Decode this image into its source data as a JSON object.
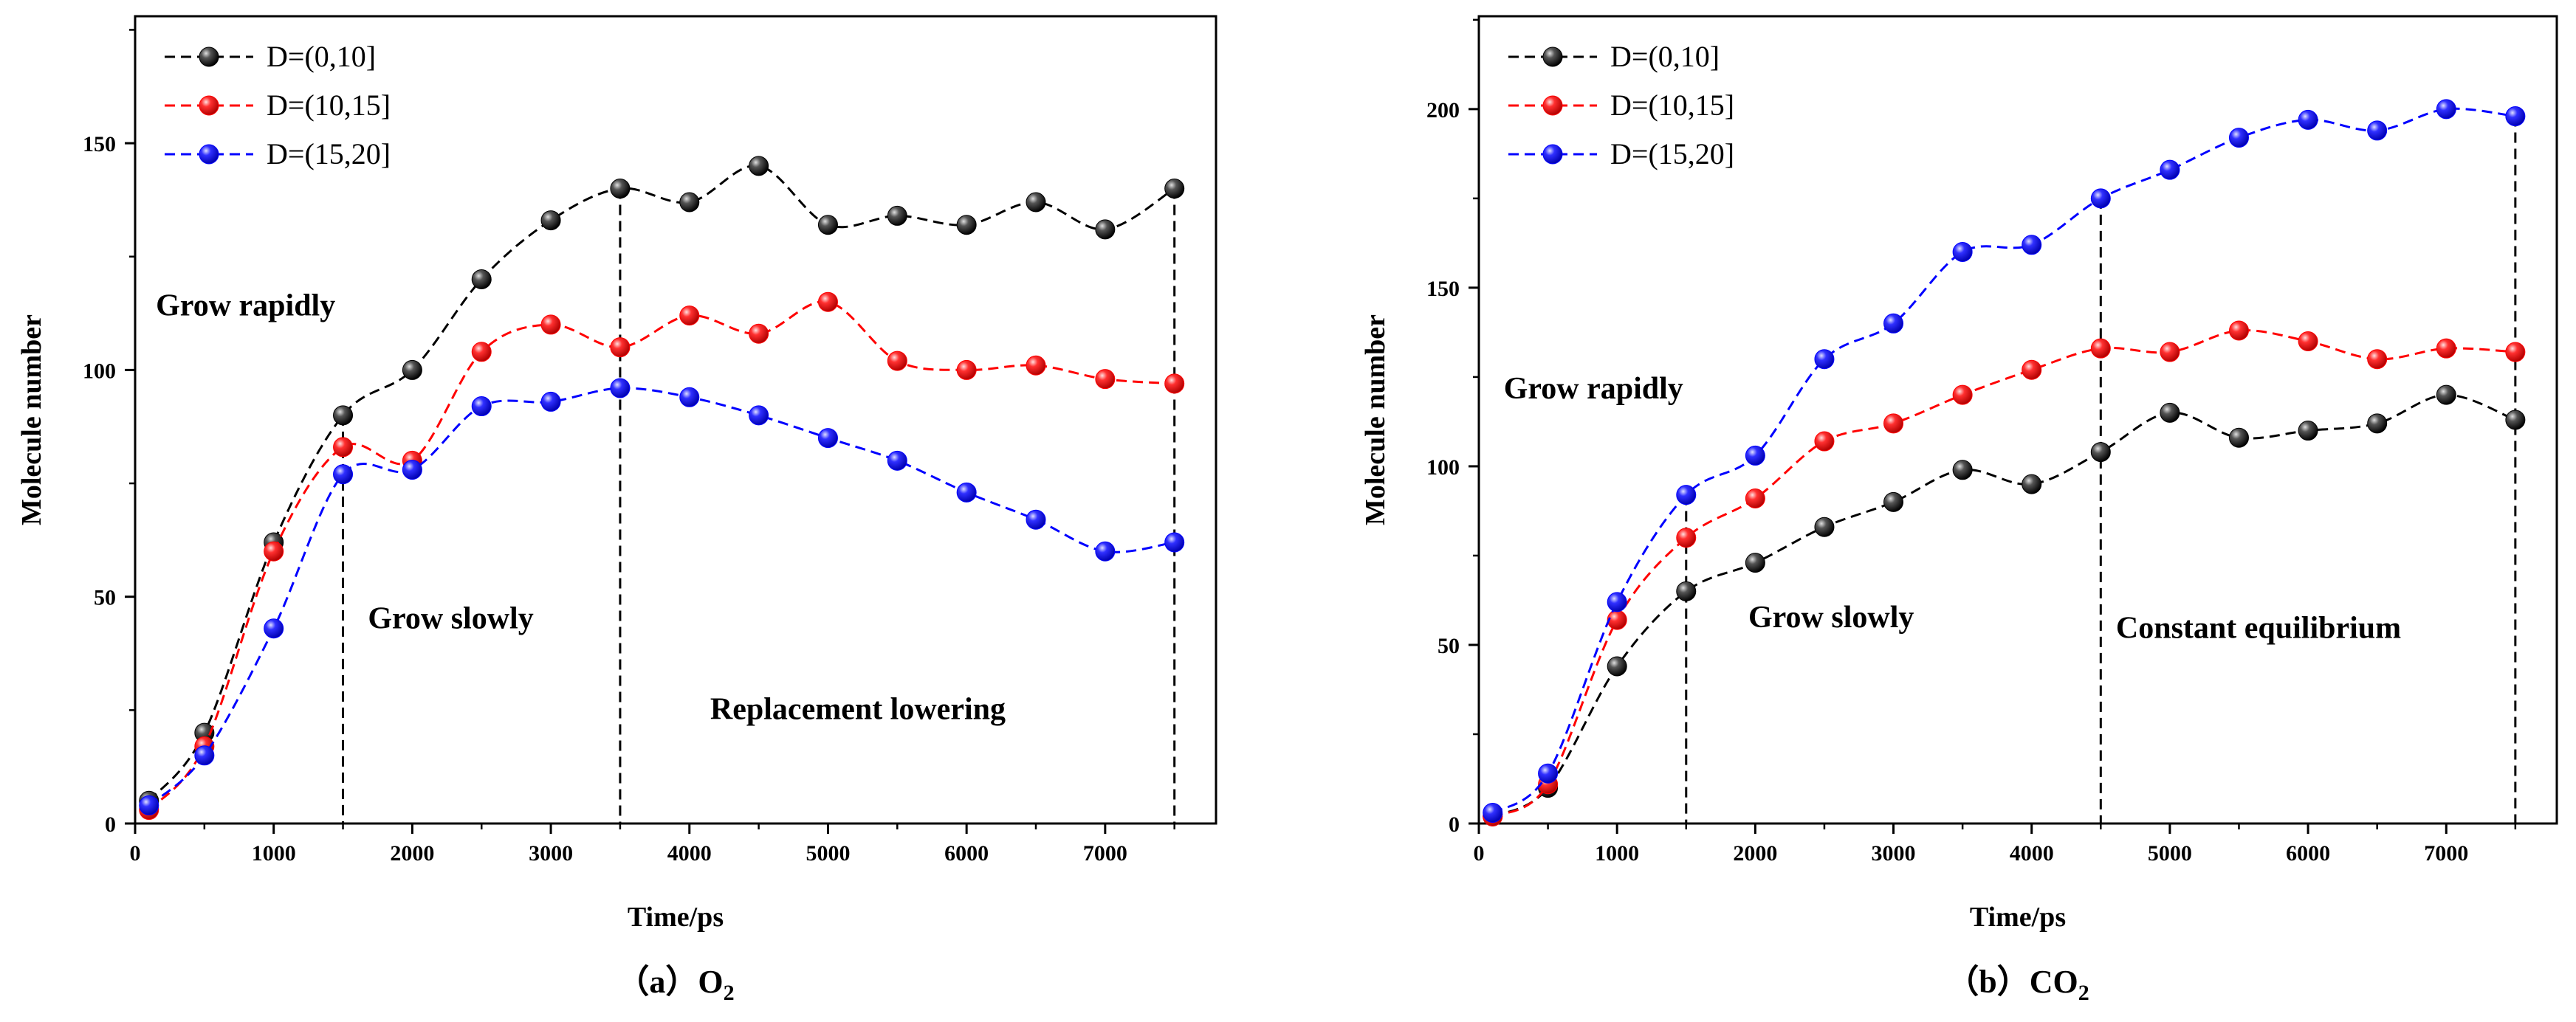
{
  "chart_data": [
    {
      "type": "line",
      "id": "o2",
      "caption": {
        "prefix": "（a）",
        "main": "O",
        "sub": "2"
      },
      "xlabel": "Time/ps",
      "ylabel": "Molecule number",
      "xlim": [
        0,
        7800
      ],
      "ylim": [
        0,
        178
      ],
      "xticks": [
        0,
        1000,
        2000,
        3000,
        4000,
        5000,
        6000,
        7000
      ],
      "yticks": [
        0,
        50,
        100,
        150
      ],
      "x": [
        100,
        500,
        1000,
        1500,
        2000,
        2500,
        3000,
        3500,
        4000,
        4500,
        5000,
        5500,
        6000,
        6500,
        7000,
        7500
      ],
      "series": [
        {
          "name": "D=(0,10]",
          "color": "#000000",
          "values": [
            5,
            20,
            62,
            90,
            100,
            120,
            133,
            140,
            137,
            145,
            132,
            134,
            132,
            137,
            131,
            140
          ]
        },
        {
          "name": "D=(10,15]",
          "color": "#ff0000",
          "values": [
            3,
            17,
            60,
            83,
            80,
            104,
            110,
            105,
            112,
            108,
            115,
            102,
            100,
            101,
            98,
            97
          ]
        },
        {
          "name": "D=(15,20]",
          "color": "#0000ff",
          "values": [
            4,
            15,
            43,
            77,
            78,
            92,
            93,
            96,
            94,
            90,
            85,
            80,
            73,
            67,
            60,
            62
          ]
        }
      ],
      "dividers": [
        {
          "x": 1500,
          "y": 90
        },
        {
          "x": 3500,
          "y": 140
        },
        {
          "x": 7500,
          "y": 140
        }
      ],
      "annotations": [
        {
          "text": "Grow rapidly",
          "x": 150,
          "y": 112
        },
        {
          "text": "Grow slowly",
          "x": 1680,
          "y": 43
        },
        {
          "text": "Replacement lowering",
          "x": 4150,
          "y": 23
        }
      ]
    },
    {
      "type": "line",
      "id": "co2",
      "caption": {
        "prefix": "（b）",
        "main": "CO",
        "sub": "2"
      },
      "xlabel": "Time/ps",
      "ylabel": "Molecule number",
      "xlim": [
        0,
        7800
      ],
      "ylim": [
        0,
        226
      ],
      "xticks": [
        0,
        1000,
        2000,
        3000,
        4000,
        5000,
        6000,
        7000
      ],
      "yticks": [
        0,
        50,
        100,
        150,
        200
      ],
      "x": [
        100,
        500,
        1000,
        1500,
        2000,
        2500,
        3000,
        3500,
        4000,
        4500,
        5000,
        5500,
        6000,
        6500,
        7000,
        7500
      ],
      "series": [
        {
          "name": "D=(0,10]",
          "color": "#000000",
          "values": [
            2,
            10,
            44,
            65,
            73,
            83,
            90,
            99,
            95,
            104,
            115,
            108,
            110,
            112,
            120,
            113
          ]
        },
        {
          "name": "D=(10,15]",
          "color": "#ff0000",
          "values": [
            2,
            11,
            57,
            80,
            91,
            107,
            112,
            120,
            127,
            133,
            132,
            138,
            135,
            130,
            133,
            132
          ]
        },
        {
          "name": "D=(15,20]",
          "color": "#0000ff",
          "values": [
            3,
            14,
            62,
            92,
            103,
            130,
            140,
            160,
            162,
            175,
            183,
            192,
            197,
            194,
            200,
            198
          ]
        }
      ],
      "dividers": [
        {
          "x": 1500,
          "y": 92
        },
        {
          "x": 4500,
          "y": 175
        },
        {
          "x": 7500,
          "y": 198
        }
      ],
      "annotations": [
        {
          "text": "Grow rapidly",
          "x": 180,
          "y": 119
        },
        {
          "text": "Grow slowly",
          "x": 1950,
          "y": 55
        },
        {
          "text": "Constant equilibrium",
          "x": 4610,
          "y": 52
        }
      ]
    }
  ]
}
